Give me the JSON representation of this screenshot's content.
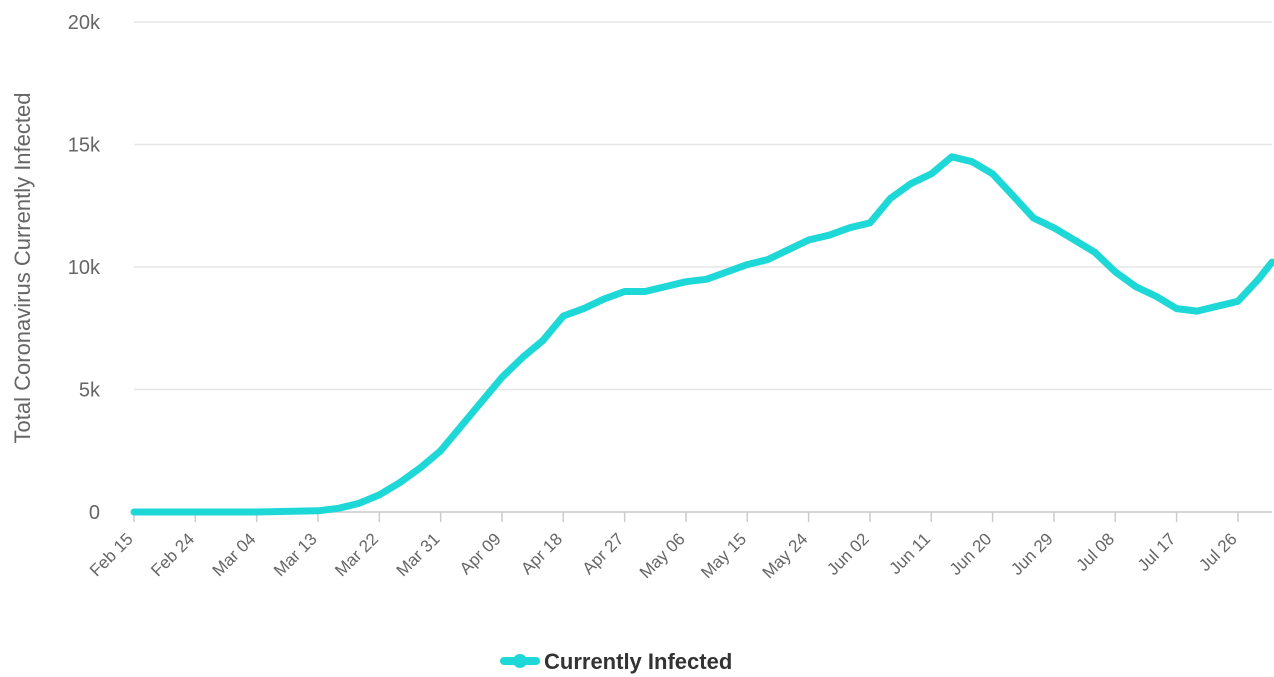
{
  "chart_data": {
    "type": "line",
    "ylabel": "Total Coronavirus Currently Infected",
    "ylim": [
      0,
      20000
    ],
    "y_ticks": [
      0,
      5000,
      10000,
      15000,
      20000
    ],
    "y_tick_labels": [
      "0",
      "5k",
      "10k",
      "15k",
      "20k"
    ],
    "x_tick_labels": [
      "Feb 15",
      "Feb 24",
      "Mar 04",
      "Mar 13",
      "Mar 22",
      "Mar 31",
      "Apr 09",
      "Apr 18",
      "Apr 27",
      "May 06",
      "May 15",
      "May 24",
      "Jun 02",
      "Jun 11",
      "Jun 20",
      "Jun 29",
      "Jul 08",
      "Jul 17",
      "Jul 26"
    ],
    "x_start": "Feb 15",
    "x_end": "Jul 31",
    "legend_position": "bottom-center",
    "grid": true,
    "colors": {
      "series": "#1ed8d8",
      "grid": "#e6e6e6",
      "text": "#666666"
    },
    "series": [
      {
        "name": "Currently Infected",
        "x": [
          "Feb 15",
          "Feb 24",
          "Mar 04",
          "Mar 13",
          "Mar 16",
          "Mar 19",
          "Mar 22",
          "Mar 25",
          "Mar 28",
          "Mar 31",
          "Apr 03",
          "Apr 06",
          "Apr 09",
          "Apr 12",
          "Apr 15",
          "Apr 18",
          "Apr 21",
          "Apr 24",
          "Apr 27",
          "Apr 30",
          "May 03",
          "May 06",
          "May 09",
          "May 12",
          "May 15",
          "May 18",
          "May 21",
          "May 24",
          "May 27",
          "May 30",
          "Jun 02",
          "Jun 05",
          "Jun 08",
          "Jun 11",
          "Jun 14",
          "Jun 17",
          "Jun 20",
          "Jun 23",
          "Jun 26",
          "Jun 29",
          "Jul 02",
          "Jul 05",
          "Jul 08",
          "Jul 11",
          "Jul 14",
          "Jul 17",
          "Jul 20",
          "Jul 23",
          "Jul 26",
          "Jul 29",
          "Jul 31"
        ],
        "values": [
          0,
          0,
          0,
          50,
          150,
          350,
          700,
          1200,
          1800,
          2500,
          3500,
          4500,
          5500,
          6300,
          7000,
          8000,
          8300,
          8700,
          9000,
          9000,
          9200,
          9400,
          9500,
          9800,
          10100,
          10300,
          10700,
          11100,
          11300,
          11600,
          11800,
          12800,
          13400,
          13800,
          14500,
          14300,
          13800,
          12900,
          12000,
          11600,
          11100,
          10600,
          9800,
          9200,
          8800,
          8300,
          8200,
          8400,
          8600,
          9500,
          10200
        ]
      }
    ]
  }
}
